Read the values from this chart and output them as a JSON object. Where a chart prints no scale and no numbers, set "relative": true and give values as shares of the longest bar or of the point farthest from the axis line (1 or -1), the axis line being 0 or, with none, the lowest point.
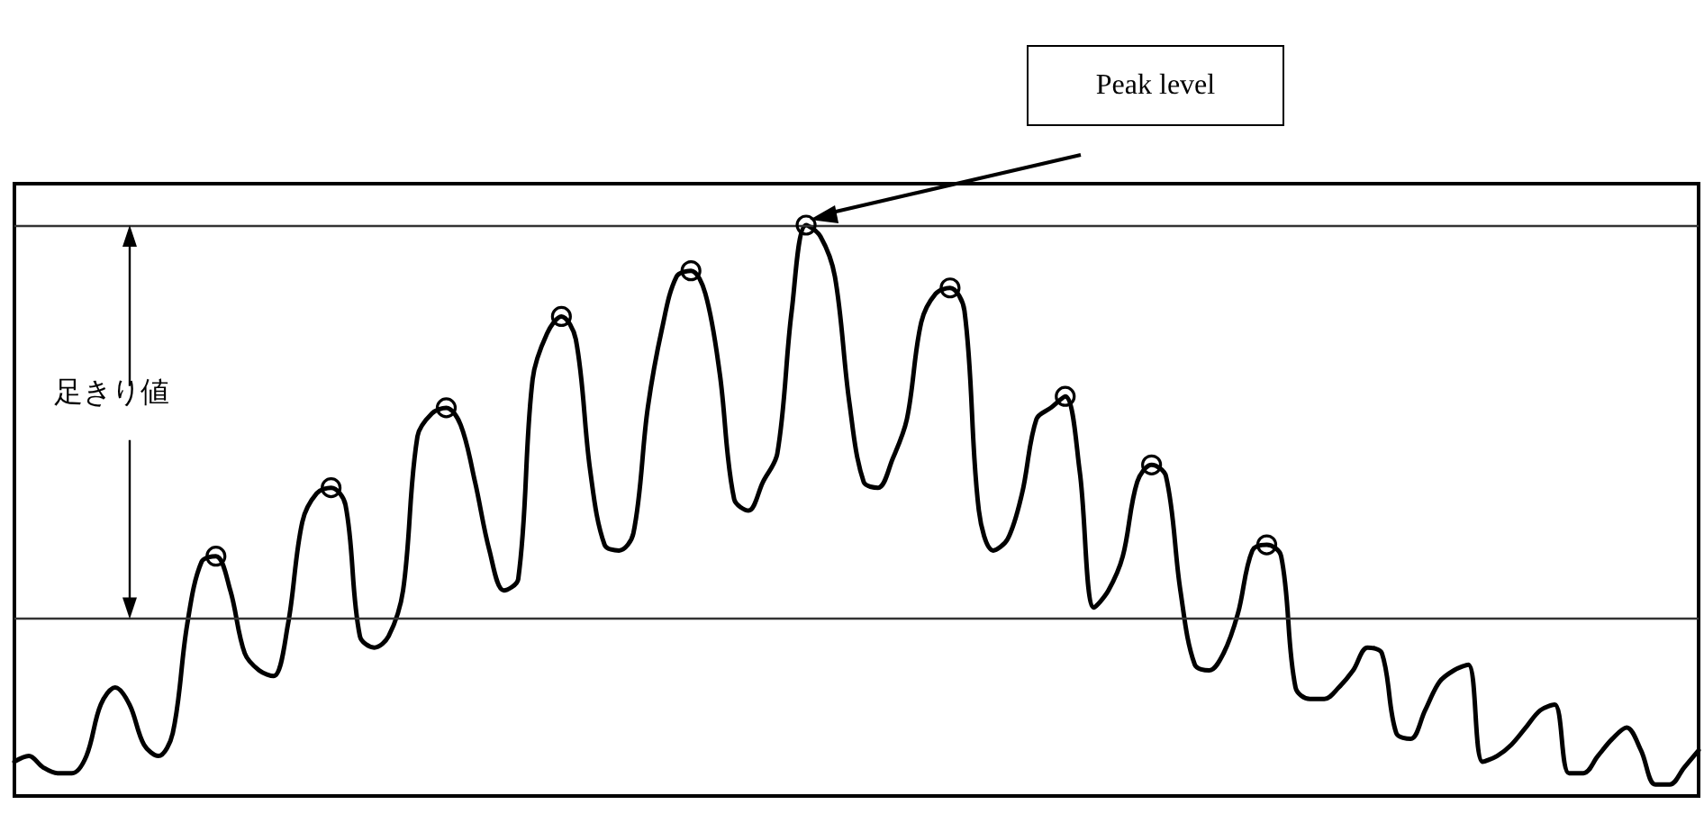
{
  "chart_data": {
    "type": "line",
    "relative": true,
    "categories": [
      null,
      null,
      null,
      null,
      null,
      null,
      null,
      null,
      null,
      null,
      null,
      null,
      null,
      null,
      null,
      null,
      null,
      null,
      null,
      null,
      null,
      null,
      null,
      null,
      null,
      null,
      null,
      null,
      null,
      null,
      null,
      null,
      null,
      null,
      null,
      null,
      null,
      null,
      null,
      null,
      null,
      null,
      null,
      null,
      null,
      null,
      null,
      null,
      null,
      null,
      null,
      null,
      null,
      null,
      null,
      null,
      null,
      null,
      null,
      null,
      null,
      null,
      null,
      null,
      null,
      null,
      null,
      null,
      null,
      null,
      null,
      null,
      null,
      null,
      null,
      null,
      null,
      null,
      null,
      null,
      null,
      null,
      null,
      null,
      null,
      null,
      null,
      null,
      null,
      null,
      null,
      null,
      null,
      null,
      null,
      null,
      null,
      null,
      null,
      null,
      null,
      null,
      null,
      null,
      null,
      null,
      null,
      null,
      null,
      null,
      null,
      null,
      null,
      null,
      null,
      null,
      null,
      null
    ],
    "series": [
      {
        "color": "#000000",
        "values": [
          0.06,
          0.07,
          0.05,
          0.04,
          0.04,
          0.07,
          0.16,
          0.19,
          0.16,
          0.09,
          0.07,
          0.11,
          0.3,
          0.41,
          0.42,
          0.36,
          0.25,
          0.22,
          0.21,
          0.3,
          0.48,
          0.53,
          0.54,
          0.51,
          0.28,
          0.26,
          0.28,
          0.36,
          0.63,
          0.67,
          0.68,
          0.65,
          0.55,
          0.43,
          0.36,
          0.38,
          0.73,
          0.81,
          0.84,
          0.8,
          0.57,
          0.44,
          0.43,
          0.46,
          0.68,
          0.82,
          0.91,
          0.92,
          0.88,
          0.74,
          0.52,
          0.5,
          0.55,
          0.6,
          0.85,
          1.0,
          0.98,
          0.91,
          0.69,
          0.55,
          0.54,
          0.59,
          0.66,
          0.83,
          0.88,
          0.89,
          0.85,
          0.5,
          0.43,
          0.45,
          0.53,
          0.66,
          0.68,
          0.7,
          0.57,
          0.33,
          0.36,
          0.42,
          0.55,
          0.58,
          0.56,
          0.36,
          0.23,
          0.22,
          0.25,
          0.32,
          0.43,
          0.44,
          0.42,
          0.19,
          0.17,
          0.17,
          0.19,
          0.22,
          0.26,
          0.25,
          0.11,
          0.1,
          0.15,
          0.2,
          0.22,
          0.23,
          0.06,
          0.07,
          0.09,
          0.12,
          0.15,
          0.16,
          0.04,
          0.04,
          0.07,
          0.1,
          0.12,
          0.08,
          0.02,
          0.02,
          0.05,
          0.08
        ]
      }
    ],
    "ref_lines": [
      {
        "axis": "y",
        "value": 1.0,
        "color": "#333333"
      },
      {
        "axis": "y",
        "value": 0.31,
        "color": "#333333"
      }
    ],
    "annotations": [
      "Peak level",
      "足きり値"
    ]
  }
}
